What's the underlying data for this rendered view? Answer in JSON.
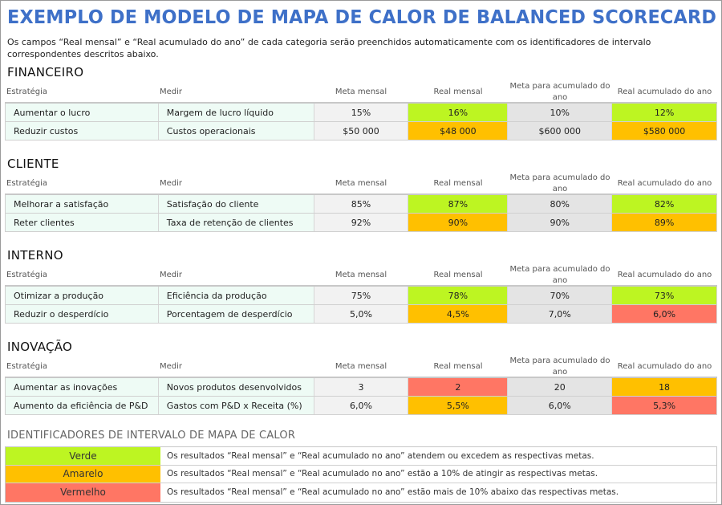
{
  "title": "EXEMPLO DE MODELO DE MAPA DE CALOR DE BALANCED SCORECARD",
  "description": "Os campos “Real mensal” e “Real acumulado do ano” de cada categoria serão preenchidos automaticamente com os identificadores de intervalo correspondentes descritos abaixo.",
  "colors": {
    "green": "#bdf522",
    "yellow": "#ffc000",
    "red": "#ff7664"
  },
  "columns": [
    "Estratégia",
    "Medir",
    "Meta mensal",
    "Real mensal",
    "Meta para acumulado do ano",
    "Real acumulado do ano"
  ],
  "sections": [
    {
      "name": "FINANCEIRO",
      "rows": [
        {
          "strategy": "Aumentar o lucro",
          "measure": "Margem de lucro líquido",
          "meta_mensal": "15%",
          "real_mensal": "16%",
          "real_mensal_status": "green",
          "meta_acumulado": "10%",
          "real_acumulado": "12%",
          "real_acumulado_status": "green"
        },
        {
          "strategy": "Reduzir custos",
          "measure": "Custos operacionais",
          "meta_mensal": "$50 000",
          "real_mensal": "$48 000",
          "real_mensal_status": "yellow",
          "meta_acumulado": "$600 000",
          "real_acumulado": "$580 000",
          "real_acumulado_status": "yellow"
        }
      ]
    },
    {
      "name": "CLIENTE",
      "rows": [
        {
          "strategy": "Melhorar a satisfação",
          "measure": "Satisfação do cliente",
          "meta_mensal": "85%",
          "real_mensal": "87%",
          "real_mensal_status": "green",
          "meta_acumulado": "80%",
          "real_acumulado": "82%",
          "real_acumulado_status": "green"
        },
        {
          "strategy": "Reter clientes",
          "measure": "Taxa de retenção de clientes",
          "meta_mensal": "92%",
          "real_mensal": "90%",
          "real_mensal_status": "yellow",
          "meta_acumulado": "90%",
          "real_acumulado": "89%",
          "real_acumulado_status": "yellow"
        }
      ]
    },
    {
      "name": "INTERNO",
      "rows": [
        {
          "strategy": "Otimizar a produção",
          "measure": "Eficiência da produção",
          "meta_mensal": "75%",
          "real_mensal": "78%",
          "real_mensal_status": "green",
          "meta_acumulado": "70%",
          "real_acumulado": "73%",
          "real_acumulado_status": "green"
        },
        {
          "strategy": "Reduzir o desperdício",
          "measure": "Porcentagem de desperdício",
          "meta_mensal": "5,0%",
          "real_mensal": "4,5%",
          "real_mensal_status": "yellow",
          "meta_acumulado": "7,0%",
          "real_acumulado": "6,0%",
          "real_acumulado_status": "red"
        }
      ]
    },
    {
      "name": "INOVAÇÃO",
      "rows": [
        {
          "strategy": "Aumentar as inovações",
          "measure": "Novos produtos desenvolvidos",
          "meta_mensal": "3",
          "real_mensal": "2",
          "real_mensal_status": "red",
          "meta_acumulado": "20",
          "real_acumulado": "18",
          "real_acumulado_status": "yellow"
        },
        {
          "strategy": "Aumento da eficiência de P&D",
          "measure": "Gastos com P&D x Receita (%)",
          "meta_mensal": "6,0%",
          "real_mensal": "5,5%",
          "real_mensal_status": "yellow",
          "meta_acumulado": "6,0%",
          "real_acumulado": "5,3%",
          "real_acumulado_status": "red"
        }
      ]
    }
  ],
  "legend": {
    "title": "IDENTIFICADORES DE INTERVALO DE MAPA DE CALOR",
    "items": [
      {
        "label": "Verde",
        "status": "green",
        "text": "Os resultados “Real mensal” e “Real acumulado no ano” atendem ou excedem as respectivas metas."
      },
      {
        "label": "Amarelo",
        "status": "yellow",
        "text": "Os resultados “Real mensal” e “Real acumulado no ano” estão a 10% de atingir as respectivas metas."
      },
      {
        "label": "Vermelho",
        "status": "red",
        "text": "Os resultados “Real mensal” e “Real acumulado no ano” estão mais de 10% abaixo das respectivas metas."
      }
    ]
  }
}
